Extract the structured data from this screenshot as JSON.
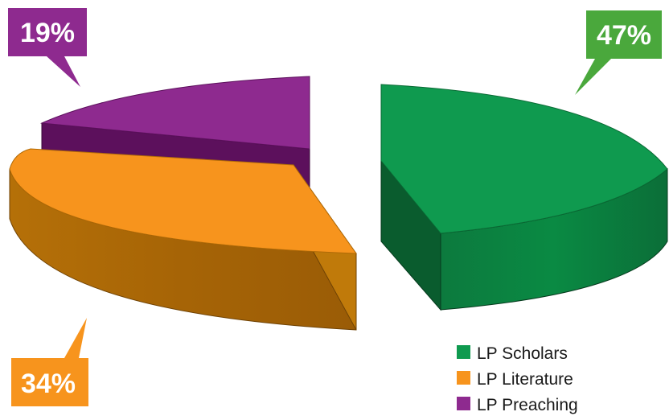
{
  "chart_data": {
    "type": "pie",
    "title": "",
    "slices": [
      {
        "label": "LP Scholars",
        "value": 47,
        "percent_label": "47%",
        "color": "#0f9a4f",
        "side_color": "#0a6b35"
      },
      {
        "label": "LP Literature",
        "value": 34,
        "percent_label": "34%",
        "color": "#f7941d",
        "side_color": "#a86407"
      },
      {
        "label": "LP Preaching",
        "value": 19,
        "percent_label": "19%",
        "color": "#8e2a8f",
        "side_color": "#5c105c"
      }
    ],
    "legend_position": "bottom-right",
    "style": "3d-exploded"
  }
}
